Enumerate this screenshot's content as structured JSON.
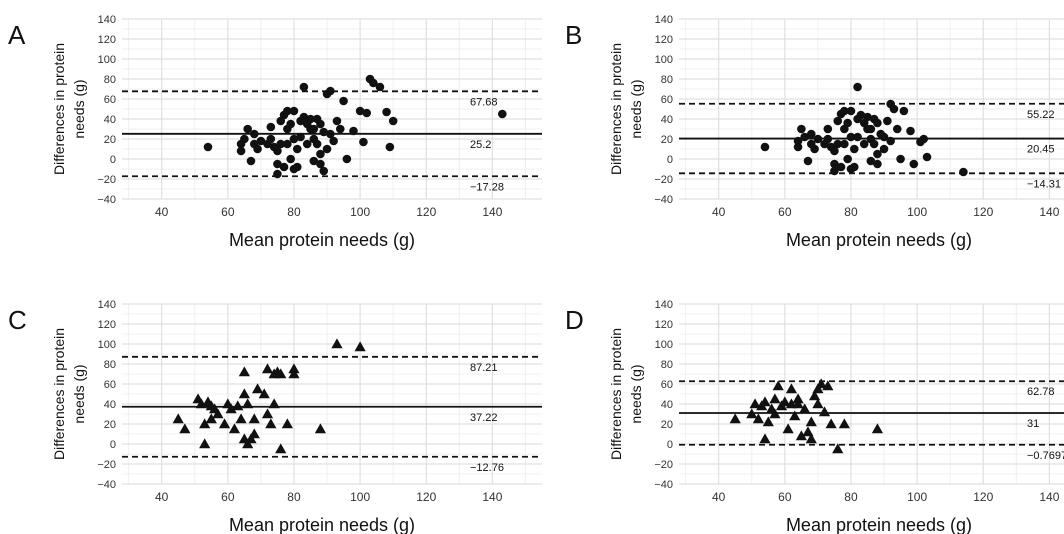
{
  "figure": {
    "ylabel_lines": [
      "Differences in protein",
      "needs (g)"
    ],
    "xlabel": "Mean protein needs (g)",
    "x_ticks": [
      40,
      60,
      80,
      100,
      120,
      140
    ],
    "y_ticks": [
      -40,
      -20,
      0,
      20,
      40,
      60,
      80,
      100,
      120,
      140
    ]
  },
  "chart_data": [
    {
      "panel": "A",
      "type": "scatter",
      "marker": "circle",
      "xlabel": "Mean protein needs (g)",
      "ylabel": "Differences in protein needs (g)",
      "xlim": [
        28,
        155
      ],
      "ylim": [
        -40,
        140
      ],
      "grid": true,
      "lines": [
        {
          "label": "67.68",
          "y": 67.68,
          "style": "dashed"
        },
        {
          "label": "25.2",
          "y": 25.2,
          "style": "solid"
        },
        {
          "label": "-17.28",
          "y": -17.28,
          "style": "dashed"
        }
      ],
      "points": [
        [
          54,
          12
        ],
        [
          64,
          8
        ],
        [
          64,
          15
        ],
        [
          65,
          20
        ],
        [
          66,
          30
        ],
        [
          67,
          -2
        ],
        [
          68,
          15
        ],
        [
          68,
          25
        ],
        [
          69,
          10
        ],
        [
          70,
          18
        ],
        [
          72,
          15
        ],
        [
          73,
          20
        ],
        [
          73,
          32
        ],
        [
          74,
          12
        ],
        [
          75,
          8
        ],
        [
          75,
          -5
        ],
        [
          75,
          -15
        ],
        [
          76,
          38
        ],
        [
          76,
          15
        ],
        [
          77,
          44
        ],
        [
          77,
          -8
        ],
        [
          78,
          48
        ],
        [
          78,
          30
        ],
        [
          78,
          15
        ],
        [
          79,
          35
        ],
        [
          79,
          0
        ],
        [
          80,
          48
        ],
        [
          80,
          20
        ],
        [
          80,
          -10
        ],
        [
          81,
          10
        ],
        [
          81,
          -8
        ],
        [
          82,
          38
        ],
        [
          82,
          22
        ],
        [
          83,
          72
        ],
        [
          83,
          42
        ],
        [
          84,
          15
        ],
        [
          84,
          35
        ],
        [
          85,
          30
        ],
        [
          85,
          40
        ],
        [
          86,
          20
        ],
        [
          86,
          30
        ],
        [
          86,
          -2
        ],
        [
          87,
          40
        ],
        [
          87,
          15
        ],
        [
          88,
          35
        ],
        [
          88,
          5
        ],
        [
          88,
          -5
        ],
        [
          89,
          -12
        ],
        [
          89,
          27
        ],
        [
          90,
          10
        ],
        [
          90,
          65
        ],
        [
          91,
          68
        ],
        [
          91,
          25
        ],
        [
          92,
          18
        ],
        [
          93,
          38
        ],
        [
          94,
          30
        ],
        [
          95,
          58
        ],
        [
          96,
          0
        ],
        [
          98,
          28
        ],
        [
          100,
          48
        ],
        [
          101,
          17
        ],
        [
          102,
          46
        ],
        [
          103,
          80
        ],
        [
          104,
          76
        ],
        [
          106,
          72
        ],
        [
          108,
          47
        ],
        [
          109,
          12
        ],
        [
          110,
          38
        ],
        [
          143,
          45
        ]
      ]
    },
    {
      "panel": "B",
      "type": "scatter",
      "marker": "circle",
      "xlabel": "Mean protein needs (g)",
      "ylabel": "Differences in protein needs (g)",
      "xlim": [
        28,
        155
      ],
      "ylim": [
        -40,
        140
      ],
      "grid": true,
      "lines": [
        {
          "label": "55.22",
          "y": 55.22,
          "style": "dashed"
        },
        {
          "label": "20.45",
          "y": 20.45,
          "style": "solid"
        },
        {
          "label": "-14.31",
          "y": -14.31,
          "style": "dashed"
        }
      ],
      "points": [
        [
          54,
          12
        ],
        [
          64,
          12
        ],
        [
          64,
          18
        ],
        [
          65,
          30
        ],
        [
          66,
          22
        ],
        [
          67,
          -2
        ],
        [
          68,
          15
        ],
        [
          68,
          25
        ],
        [
          69,
          10
        ],
        [
          70,
          20
        ],
        [
          72,
          15
        ],
        [
          73,
          20
        ],
        [
          73,
          30
        ],
        [
          74,
          12
        ],
        [
          75,
          8
        ],
        [
          75,
          -5
        ],
        [
          75,
          -12
        ],
        [
          76,
          38
        ],
        [
          76,
          15
        ],
        [
          77,
          45
        ],
        [
          77,
          -8
        ],
        [
          78,
          48
        ],
        [
          78,
          30
        ],
        [
          78,
          15
        ],
        [
          79,
          36
        ],
        [
          79,
          0
        ],
        [
          80,
          48
        ],
        [
          80,
          22
        ],
        [
          80,
          -10
        ],
        [
          81,
          10
        ],
        [
          81,
          -8
        ],
        [
          82,
          40
        ],
        [
          82,
          22
        ],
        [
          82,
          72
        ],
        [
          83,
          44
        ],
        [
          84,
          15
        ],
        [
          84,
          36
        ],
        [
          85,
          30
        ],
        [
          85,
          42
        ],
        [
          86,
          20
        ],
        [
          86,
          30
        ],
        [
          86,
          -2
        ],
        [
          87,
          40
        ],
        [
          87,
          15
        ],
        [
          88,
          36
        ],
        [
          88,
          5
        ],
        [
          88,
          -5
        ],
        [
          89,
          25
        ],
        [
          90,
          10
        ],
        [
          90,
          22
        ],
        [
          91,
          38
        ],
        [
          92,
          18
        ],
        [
          92,
          55
        ],
        [
          93,
          50
        ],
        [
          94,
          30
        ],
        [
          95,
          0
        ],
        [
          96,
          48
        ],
        [
          98,
          28
        ],
        [
          99,
          -5
        ],
        [
          101,
          17
        ],
        [
          102,
          20
        ],
        [
          103,
          2
        ],
        [
          114,
          -13
        ]
      ]
    },
    {
      "panel": "C",
      "type": "scatter",
      "marker": "triangle",
      "xlabel": "Mean protein needs (g)",
      "ylabel": "Differences in protein needs (g)",
      "xlim": [
        28,
        155
      ],
      "ylim": [
        -40,
        140
      ],
      "grid": true,
      "lines": [
        {
          "label": "87.21",
          "y": 87.21,
          "style": "dashed"
        },
        {
          "label": "37.22",
          "y": 37.22,
          "style": "solid"
        },
        {
          "label": "-12.76",
          "y": -12.76,
          "style": "dashed"
        }
      ],
      "points": [
        [
          45,
          25
        ],
        [
          47,
          15
        ],
        [
          51,
          45
        ],
        [
          52,
          40
        ],
        [
          53,
          20
        ],
        [
          53,
          0
        ],
        [
          54,
          42
        ],
        [
          55,
          25
        ],
        [
          55,
          38
        ],
        [
          56,
          35
        ],
        [
          57,
          30
        ],
        [
          59,
          20
        ],
        [
          60,
          40
        ],
        [
          61,
          35
        ],
        [
          62,
          15
        ],
        [
          63,
          38
        ],
        [
          64,
          25
        ],
        [
          65,
          50
        ],
        [
          65,
          5
        ],
        [
          65,
          72
        ],
        [
          66,
          40
        ],
        [
          66,
          0
        ],
        [
          67,
          5
        ],
        [
          68,
          10
        ],
        [
          68,
          25
        ],
        [
          69,
          55
        ],
        [
          71,
          50
        ],
        [
          72,
          30
        ],
        [
          72,
          75
        ],
        [
          73,
          20
        ],
        [
          74,
          70
        ],
        [
          74,
          40
        ],
        [
          75,
          72
        ],
        [
          76,
          -5
        ],
        [
          76,
          70
        ],
        [
          78,
          20
        ],
        [
          80,
          75
        ],
        [
          80,
          70
        ],
        [
          88,
          15
        ],
        [
          93,
          100
        ],
        [
          100,
          97
        ]
      ]
    },
    {
      "panel": "D",
      "type": "scatter",
      "marker": "triangle",
      "xlabel": "Mean protein needs (g)",
      "ylabel": "Differences in protein needs (g)",
      "xlim": [
        28,
        155
      ],
      "ylim": [
        -40,
        140
      ],
      "grid": true,
      "lines": [
        {
          "label": "62.78",
          "y": 62.78,
          "style": "dashed"
        },
        {
          "label": "31",
          "y": 31,
          "style": "solid"
        },
        {
          "label": "-0.7697",
          "y": -0.7697,
          "style": "dashed"
        }
      ],
      "points": [
        [
          45,
          25
        ],
        [
          50,
          30
        ],
        [
          51,
          40
        ],
        [
          52,
          25
        ],
        [
          53,
          38
        ],
        [
          54,
          42
        ],
        [
          54,
          5
        ],
        [
          55,
          22
        ],
        [
          56,
          35
        ],
        [
          57,
          30
        ],
        [
          57,
          45
        ],
        [
          58,
          58
        ],
        [
          59,
          38
        ],
        [
          60,
          42
        ],
        [
          61,
          15
        ],
        [
          62,
          40
        ],
        [
          62,
          55
        ],
        [
          63,
          28
        ],
        [
          64,
          45
        ],
        [
          64,
          40
        ],
        [
          65,
          8
        ],
        [
          66,
          35
        ],
        [
          67,
          12
        ],
        [
          68,
          5
        ],
        [
          68,
          22
        ],
        [
          69,
          48
        ],
        [
          70,
          55
        ],
        [
          70,
          40
        ],
        [
          71,
          60
        ],
        [
          72,
          32
        ],
        [
          73,
          58
        ],
        [
          74,
          20
        ],
        [
          76,
          -5
        ],
        [
          78,
          20
        ],
        [
          88,
          15
        ]
      ]
    }
  ]
}
